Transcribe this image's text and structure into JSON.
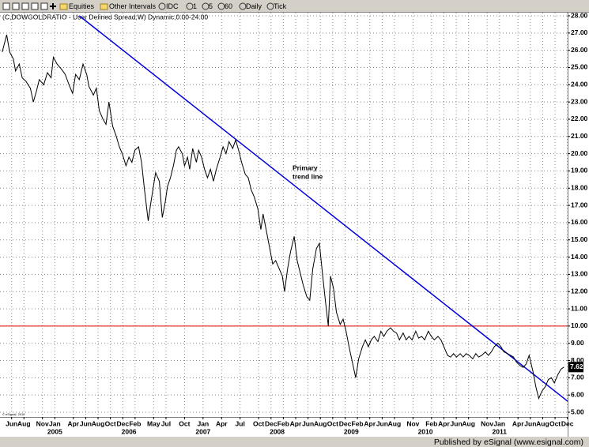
{
  "toolbar": {
    "items": [
      "Equities",
      "Other Intervals",
      "IDC",
      "1",
      "5",
      "60",
      "Daily",
      "Tick"
    ]
  },
  "chart_data": {
    "type": "line",
    "title": "(C,DOWGOLDRATIO - User Defined Spread,W) Dynamic,0.00-24.00",
    "color": "#000000",
    "x": [
      2004.29,
      2004.35,
      2004.39,
      2004.44,
      2004.47,
      2004.52,
      2004.56,
      2004.61,
      2004.67,
      2004.71,
      2004.75,
      2004.79,
      2004.85,
      2004.9,
      2004.95,
      2004.98,
      2005.03,
      2005.09,
      2005.14,
      2005.2,
      2005.24,
      2005.28,
      2005.33,
      2005.38,
      2005.43,
      2005.46,
      2005.52,
      2005.56,
      2005.6,
      2005.65,
      2005.69,
      2005.73,
      2005.78,
      2005.83,
      2005.87,
      2005.91,
      2005.96,
      2006.0,
      2006.04,
      2006.08,
      2006.13,
      2006.17,
      2006.21,
      2006.26,
      2006.29,
      2006.33,
      2006.36,
      2006.41,
      2006.45,
      2006.49,
      2006.52,
      2006.56,
      2006.6,
      2006.64,
      2006.67,
      2006.72,
      2006.75,
      2006.79,
      2006.82,
      2006.86,
      2006.91,
      2006.94,
      2006.98,
      2007.02,
      2007.06,
      2007.1,
      2007.14,
      2007.18,
      2007.23,
      2007.27,
      2007.31,
      2007.35,
      2007.4,
      2007.44,
      2007.48,
      2007.52,
      2007.57,
      2007.61,
      2007.65,
      2007.69,
      2007.74,
      2007.78,
      2007.81,
      2007.86,
      2007.9,
      2007.94,
      2007.98,
      2008.03,
      2008.07,
      2008.1,
      2008.14,
      2008.18,
      2008.23,
      2008.27,
      2008.31,
      2008.35,
      2008.4,
      2008.44,
      2008.48,
      2008.53,
      2008.57,
      2008.61,
      2008.65,
      2008.69,
      2008.72,
      2008.76,
      2008.8,
      2008.85,
      2008.89,
      2008.93,
      2008.97,
      2009.02,
      2009.06,
      2009.1,
      2009.15,
      2009.19,
      2009.23,
      2009.27,
      2009.31,
      2009.36,
      2009.4,
      2009.44,
      2009.48,
      2009.53,
      2009.57,
      2009.61,
      2009.65,
      2009.7,
      2009.74,
      2009.78,
      2009.82,
      2009.87,
      2009.91,
      2009.95,
      2009.99,
      2010.04,
      2010.08,
      2010.12,
      2010.17,
      2010.21,
      2010.25,
      2010.3,
      2010.34,
      2010.38,
      2010.42,
      2010.47,
      2010.51,
      2010.55,
      2010.59,
      2010.64,
      2010.68,
      2010.72,
      2010.76,
      2010.81,
      2010.85,
      2010.89,
      2010.93,
      2010.98,
      2011.02,
      2011.06,
      2011.11,
      2011.15,
      2011.19,
      2011.23,
      2011.28,
      2011.32,
      2011.36,
      2011.4,
      2011.45,
      2011.49,
      2011.53,
      2011.57,
      2011.62,
      2011.66,
      2011.7,
      2011.74,
      2011.79,
      2011.83,
      2011.87
    ],
    "values": [
      25.9,
      26.9,
      25.9,
      25.5,
      24.8,
      25.2,
      24.4,
      24.2,
      23.8,
      23.0,
      23.6,
      24.3,
      24.0,
      24.7,
      24.4,
      25.6,
      25.2,
      24.9,
      24.6,
      23.9,
      23.5,
      24.6,
      24.3,
      25.2,
      24.6,
      23.9,
      23.4,
      23.8,
      22.5,
      22.0,
      21.7,
      23.0,
      21.6,
      21.0,
      20.4,
      20.0,
      19.3,
      19.8,
      19.5,
      20.2,
      20.4,
      19.5,
      17.9,
      16.1,
      17.0,
      18.1,
      18.9,
      18.4,
      16.3,
      17.2,
      18.1,
      18.6,
      19.3,
      20.2,
      20.4,
      20.0,
      19.3,
      19.8,
      19.1,
      20.3,
      19.5,
      20.2,
      19.8,
      19.1,
      18.6,
      19.1,
      18.4,
      19.1,
      19.8,
      20.4,
      20.0,
      20.7,
      20.3,
      20.8,
      20.2,
      19.5,
      18.8,
      18.6,
      17.9,
      17.5,
      16.8,
      15.6,
      16.5,
      15.4,
      14.5,
      13.6,
      13.8,
      13.3,
      12.9,
      12.0,
      13.3,
      14.3,
      15.2,
      13.8,
      13.1,
      12.4,
      11.7,
      11.5,
      13.3,
      14.5,
      14.8,
      13.1,
      11.5,
      10.0,
      12.9,
      12.2,
      10.8,
      10.1,
      10.4,
      9.7,
      8.8,
      7.8,
      7.0,
      8.1,
      8.8,
      9.2,
      8.8,
      9.2,
      9.4,
      9.1,
      9.7,
      9.4,
      9.7,
      9.9,
      9.7,
      9.6,
      9.2,
      9.6,
      9.2,
      9.4,
      9.2,
      9.7,
      9.3,
      9.4,
      9.2,
      9.7,
      9.4,
      9.2,
      9.4,
      9.2,
      8.8,
      8.3,
      8.2,
      8.4,
      8.2,
      8.4,
      8.2,
      8.4,
      8.3,
      8.1,
      8.4,
      8.2,
      8.3,
      8.5,
      8.3,
      8.5,
      8.8,
      9.0,
      8.8,
      8.5,
      8.4,
      8.3,
      8.2,
      7.9,
      7.7,
      7.6,
      7.8,
      8.3,
      7.4,
      6.5,
      5.8,
      6.2,
      6.5,
      6.9,
      7.0,
      6.7,
      7.2,
      7.5,
      7.62
    ],
    "last_value": 7.62,
    "xlim": [
      2004.26,
      2011.92
    ],
    "ylim": [
      5,
      28
    ],
    "grid": true,
    "xticks": [
      {
        "value": 2004.417,
        "label": "Jun"
      },
      {
        "value": 2004.583,
        "label": "Aug"
      },
      {
        "value": 2004.833,
        "label": "Nov"
      },
      {
        "value": 2005.0,
        "label": "Jan"
      },
      {
        "value": 2005.25,
        "label": "Apr"
      },
      {
        "value": 2005.417,
        "label": "Jun"
      },
      {
        "value": 2005.583,
        "label": "Aug"
      },
      {
        "value": 2005.75,
        "label": "Oct"
      },
      {
        "value": 2005.917,
        "label": "Dec"
      },
      {
        "value": 2006.083,
        "label": "Feb"
      },
      {
        "value": 2006.333,
        "label": "May"
      },
      {
        "value": 2006.5,
        "label": "Jul"
      },
      {
        "value": 2006.75,
        "label": "Oct"
      },
      {
        "value": 2007.0,
        "label": "Jan"
      },
      {
        "value": 2007.25,
        "label": "Apr"
      },
      {
        "value": 2007.5,
        "label": "Jul"
      },
      {
        "value": 2007.75,
        "label": "Oct"
      },
      {
        "value": 2007.917,
        "label": "Dec"
      },
      {
        "value": 2008.083,
        "label": "Feb"
      },
      {
        "value": 2008.25,
        "label": "Apr"
      },
      {
        "value": 2008.417,
        "label": "Jun"
      },
      {
        "value": 2008.583,
        "label": "Aug"
      },
      {
        "value": 2008.75,
        "label": "Oct"
      },
      {
        "value": 2008.917,
        "label": "Dec"
      },
      {
        "value": 2009.083,
        "label": "Feb"
      },
      {
        "value": 2009.25,
        "label": "Apr"
      },
      {
        "value": 2009.417,
        "label": "Jun"
      },
      {
        "value": 2009.583,
        "label": "Aug"
      },
      {
        "value": 2009.833,
        "label": "Nov"
      },
      {
        "value": 2010.083,
        "label": "Feb"
      },
      {
        "value": 2010.25,
        "label": "Apr"
      },
      {
        "value": 2010.417,
        "label": "Jun"
      },
      {
        "value": 2010.583,
        "label": "Aug"
      },
      {
        "value": 2010.833,
        "label": "Nov"
      },
      {
        "value": 2011.0,
        "label": "Jan"
      },
      {
        "value": 2011.25,
        "label": "Apr"
      },
      {
        "value": 2011.417,
        "label": "Jun"
      },
      {
        "value": 2011.583,
        "label": "Aug"
      },
      {
        "value": 2011.75,
        "label": "Oct"
      },
      {
        "value": 2011.917,
        "label": "Dec"
      }
    ],
    "x_year_labels": [
      2005,
      2006,
      2007,
      2008,
      2009,
      2010,
      2011
    ],
    "yticks": [
      {
        "value": 5,
        "label": "5.00"
      },
      {
        "value": 6,
        "label": "6.00"
      },
      {
        "value": 7,
        "label": "7.00"
      },
      {
        "value": 8,
        "label": "8.00"
      },
      {
        "value": 9,
        "label": "9.00"
      },
      {
        "value": 10,
        "label": "10.00"
      },
      {
        "value": 11,
        "label": "11.00"
      },
      {
        "value": 12,
        "label": "12.00"
      },
      {
        "value": 13,
        "label": "13.00"
      },
      {
        "value": 14,
        "label": "14.00"
      },
      {
        "value": 15,
        "label": "15.00"
      },
      {
        "value": 16,
        "label": "16.00"
      },
      {
        "value": 17,
        "label": "17.00"
      },
      {
        "value": 18,
        "label": "18.00"
      },
      {
        "value": 19,
        "label": "19.00"
      },
      {
        "value": 20,
        "label": "20.00"
      },
      {
        "value": 21,
        "label": "21.00"
      },
      {
        "value": 22,
        "label": "22.00"
      },
      {
        "value": 23,
        "label": "23.00"
      },
      {
        "value": 24,
        "label": "24.00"
      },
      {
        "value": 25,
        "label": "25.00"
      },
      {
        "value": 26,
        "label": "26.00"
      },
      {
        "value": 27,
        "label": "27.00"
      },
      {
        "value": 28,
        "label": "28.00"
      }
    ],
    "hline": {
      "value": 10,
      "color": "#e00000"
    },
    "trend_line": {
      "label": [
        "Primary",
        "trend line"
      ],
      "color": "#0000dd",
      "x": [
        2005.33,
        2011.92
      ],
      "y": [
        28,
        5.64
      ]
    }
  },
  "footer": {
    "copyright": "© eSignal, 2010",
    "publisher": "Published by eSignal (www.esignal.com)"
  }
}
